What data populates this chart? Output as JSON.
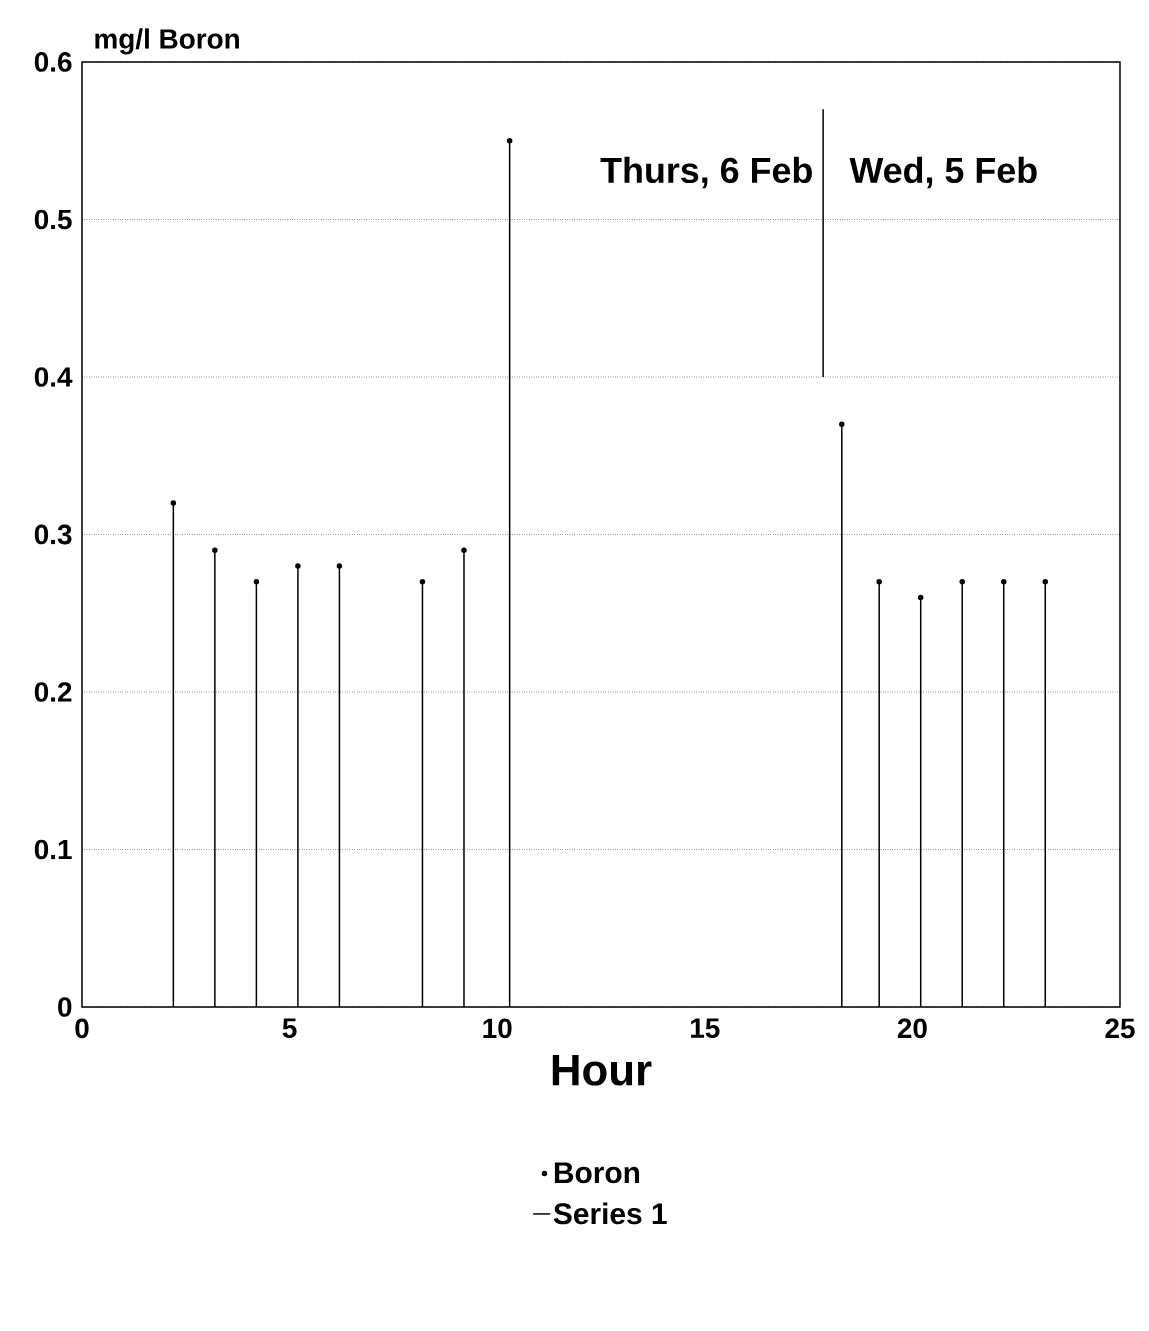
{
  "chart_data": {
    "type": "lollipop",
    "xlabel": "Hour",
    "ylabel": "mg/l Boron",
    "xlim": [
      0,
      25
    ],
    "xticks": [
      0,
      5,
      10,
      15,
      20,
      25
    ],
    "ylim": [
      0,
      0.6
    ],
    "yticks": [
      0,
      0.1,
      0.2,
      0.3,
      0.4,
      0.5,
      0.6
    ],
    "grid": "y",
    "legend": "bottom",
    "annotations": [
      "Thurs, 6 Feb",
      "Wed, 5 Feb"
    ],
    "series": [
      {
        "name": "Boron",
        "color": "#000000",
        "marker": "circle",
        "x": [
          2.2,
          3.2,
          4.2,
          5.2,
          6.2,
          8.2,
          9.2,
          10.3,
          18.3,
          19.2,
          20.2,
          21.2,
          22.2,
          23.2
        ],
        "values": [
          0.32,
          0.29,
          0.27,
          0.28,
          0.28,
          0.27,
          0.29,
          0.55,
          0.37,
          0.27,
          0.26,
          0.27,
          0.27,
          0.27
        ]
      },
      {
        "name": "Series 1",
        "type": "line",
        "color": "#000000",
        "line_style": "solid",
        "x": [
          17.85,
          17.85
        ],
        "values": [
          0.4,
          0.57
        ]
      }
    ]
  }
}
